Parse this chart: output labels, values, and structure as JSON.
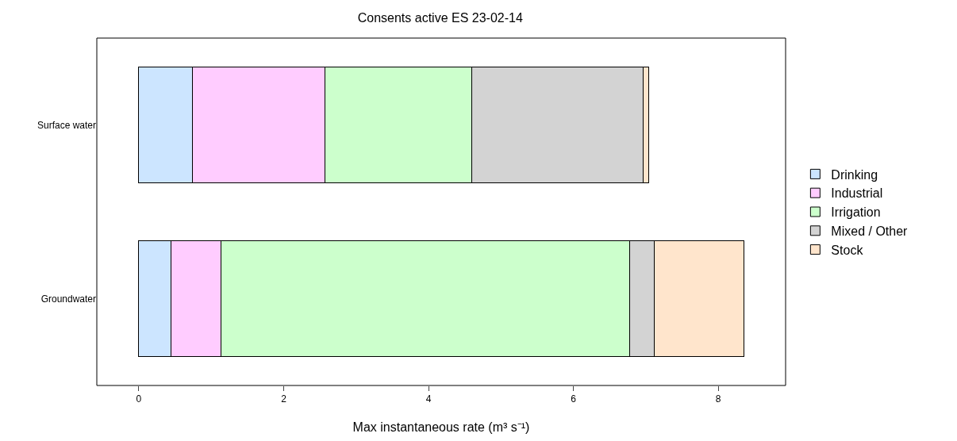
{
  "chart_data": {
    "type": "bar",
    "orientation": "horizontal",
    "stacked": true,
    "title": "Consents active ES 23-02-14",
    "xlabel": "Max instantaneous rate (m³ s⁻¹)",
    "categories": [
      "Surface water",
      "Groundwater"
    ],
    "series": [
      {
        "name": "Drinking",
        "color": "#cce5ff",
        "values": [
          0.74,
          0.44
        ]
      },
      {
        "name": "Industrial",
        "color": "#ffccff",
        "values": [
          1.83,
          0.7
        ]
      },
      {
        "name": "Irrigation",
        "color": "#ccffcc",
        "values": [
          2.03,
          5.64
        ]
      },
      {
        "name": "Mixed / Other",
        "color": "#d3d3d3",
        "values": [
          2.36,
          0.34
        ]
      },
      {
        "name": "Stock",
        "color": "#ffe5cc",
        "values": [
          0.08,
          1.23
        ]
      }
    ],
    "xlim": [
      -0.58,
      8.93
    ],
    "xticks": [
      0,
      2,
      4,
      6,
      8
    ],
    "grid": false,
    "legend": "right"
  }
}
